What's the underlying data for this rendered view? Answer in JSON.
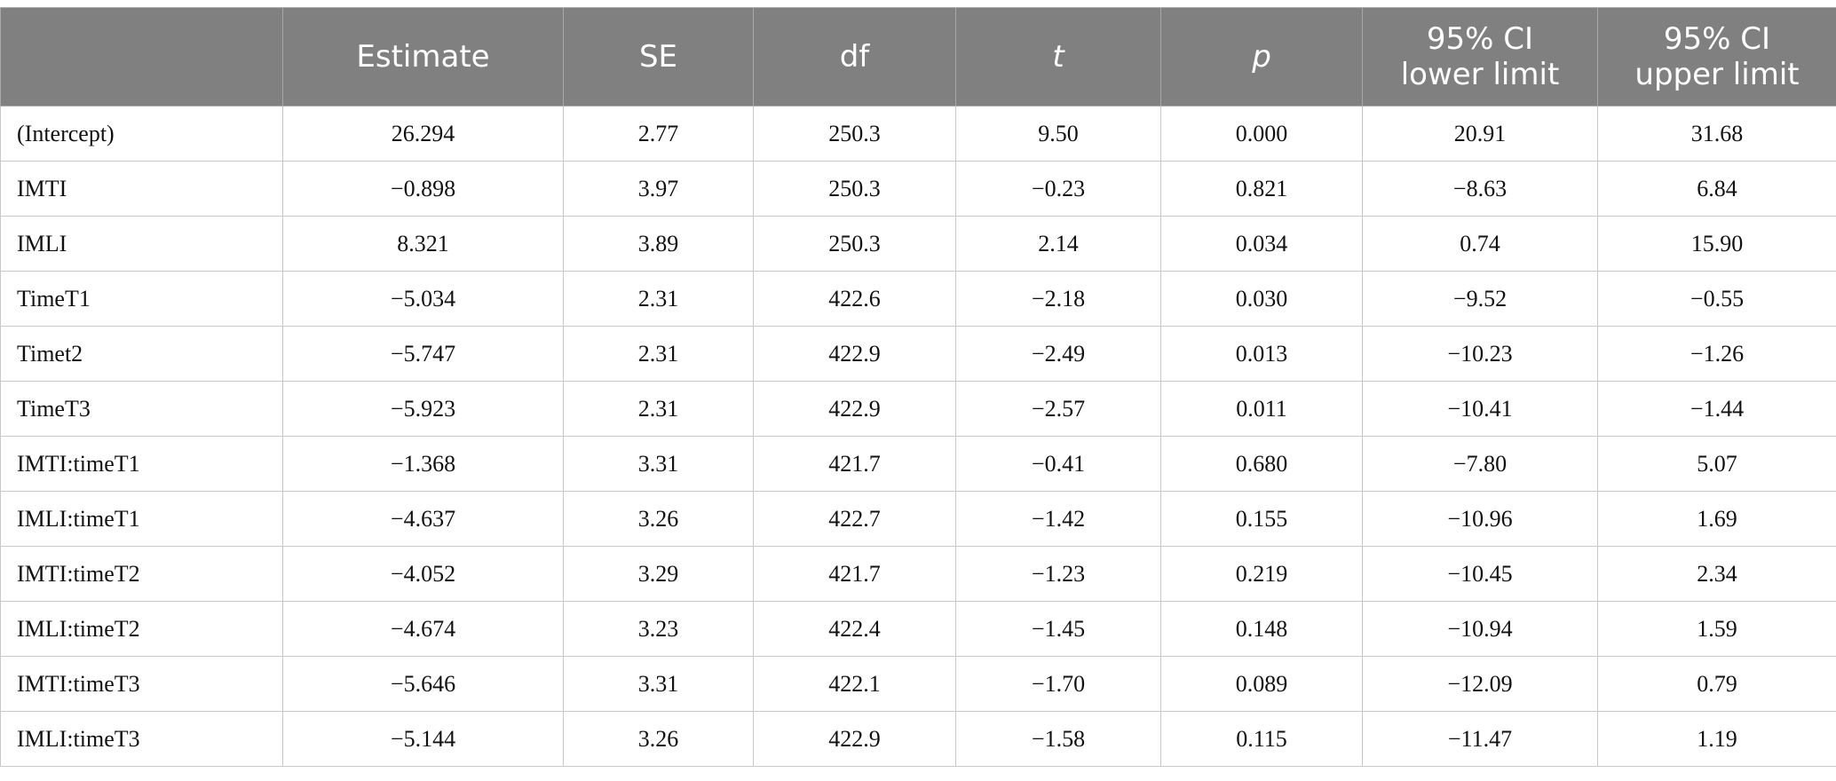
{
  "table": {
    "headers": [
      {
        "text": ""
      },
      {
        "text": "Estimate"
      },
      {
        "text": "SE"
      },
      {
        "text": "df"
      },
      {
        "text": "t"
      },
      {
        "text": "p"
      },
      {
        "line1": "95% CI",
        "line2": "lower limit"
      },
      {
        "line1": "95% CI",
        "line2": "upper limit"
      }
    ],
    "rows": [
      [
        "(Intercept)",
        "26.294",
        "2.77",
        "250.3",
        "9.50",
        "0.000",
        "20.91",
        "31.68"
      ],
      [
        "IMTI",
        "−0.898",
        "3.97",
        "250.3",
        "−0.23",
        "0.821",
        "−8.63",
        "6.84"
      ],
      [
        "IMLI",
        "8.321",
        "3.89",
        "250.3",
        "2.14",
        "0.034",
        "0.74",
        "15.90"
      ],
      [
        "TimeT1",
        "−5.034",
        "2.31",
        "422.6",
        "−2.18",
        "0.030",
        "−9.52",
        "−0.55"
      ],
      [
        "Timet2",
        "−5.747",
        "2.31",
        "422.9",
        "−2.49",
        "0.013",
        "−10.23",
        "−1.26"
      ],
      [
        "TimeT3",
        "−5.923",
        "2.31",
        "422.9",
        "−2.57",
        "0.011",
        "−10.41",
        "−1.44"
      ],
      [
        "IMTI:timeT1",
        "−1.368",
        "3.31",
        "421.7",
        "−0.41",
        "0.680",
        "−7.80",
        "5.07"
      ],
      [
        "IMLI:timeT1",
        "−4.637",
        "3.26",
        "422.7",
        "−1.42",
        "0.155",
        "−10.96",
        "1.69"
      ],
      [
        "IMTI:timeT2",
        "−4.052",
        "3.29",
        "421.7",
        "−1.23",
        "0.219",
        "−10.45",
        "2.34"
      ],
      [
        "IMLI:timeT2",
        "−4.674",
        "3.23",
        "422.4",
        "−1.45",
        "0.148",
        "−10.94",
        "1.59"
      ],
      [
        "IMTI:timeT3",
        "−5.646",
        "3.31",
        "422.1",
        "−1.70",
        "0.089",
        "−12.09",
        "0.79"
      ],
      [
        "IMLI:timeT3",
        "−5.144",
        "3.26",
        "422.9",
        "−1.58",
        "0.115",
        "−11.47",
        "1.19"
      ]
    ]
  },
  "colors": {
    "header_bg": "#808080",
    "header_text": "#ffffff",
    "grid": "#c8c8c8"
  }
}
